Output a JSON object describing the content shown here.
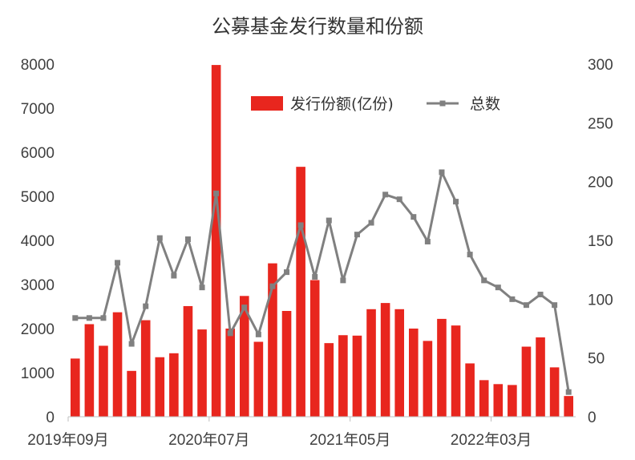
{
  "chart_data": {
    "type": "bar+line",
    "title": "公募基金发行数量和份额",
    "x_tick_labels": [
      "2019年09月",
      "2020年07月",
      "2021年05月",
      "2022年03月"
    ],
    "y_left": {
      "ylim": [
        0,
        8000
      ],
      "ticks": [
        "0",
        "1000",
        "2000",
        "3000",
        "4000",
        "5000",
        "6000",
        "7000",
        "8000"
      ]
    },
    "y_right": {
      "ylim": [
        0,
        300
      ],
      "ticks": [
        "0",
        "50",
        "100",
        "150",
        "200",
        "250",
        "300"
      ]
    },
    "legend": {
      "position": "top-center",
      "items": [
        "发行份额(亿份)",
        "总数"
      ]
    },
    "series": [
      {
        "name": "发行份额(亿份)",
        "kind": "bar",
        "axis": "left",
        "color": "#e8261e",
        "values": [
          1320,
          2100,
          1610,
          2370,
          1040,
          2190,
          1350,
          1440,
          2510,
          1980,
          7980,
          2000,
          2740,
          1700,
          3480,
          2400,
          5670,
          3100,
          1670,
          1850,
          1840,
          2440,
          2580,
          2440,
          2000,
          1720,
          2220,
          2070,
          1210,
          830,
          740,
          720,
          1590,
          1800,
          1120,
          470
        ]
      },
      {
        "name": "总数",
        "kind": "line",
        "axis": "right",
        "color": "#808080",
        "values": [
          84,
          84,
          84,
          131,
          62,
          94,
          152,
          120,
          151,
          110,
          190,
          71,
          93,
          70,
          111,
          123,
          163,
          119,
          167,
          116,
          155,
          165,
          189,
          185,
          170,
          149,
          208,
          183,
          138,
          116,
          110,
          100,
          95,
          104,
          95,
          21
        ]
      }
    ]
  }
}
